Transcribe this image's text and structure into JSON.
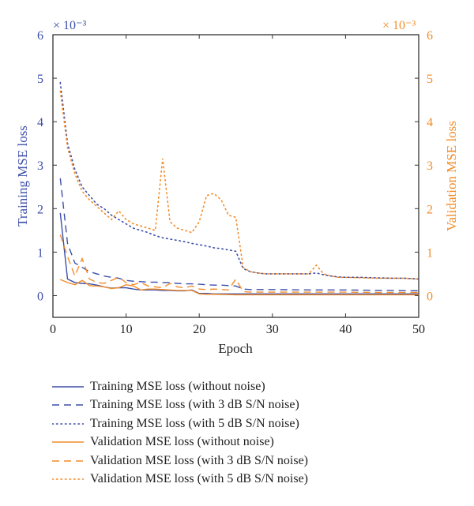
{
  "chart_data": {
    "type": "line",
    "xlabel": "Epoch",
    "ylabel_left": "Training MSE loss",
    "ylabel_right": "Validation MSE loss",
    "scale_left": "× 10⁻³",
    "scale_right": "× 10⁻³",
    "xlim": [
      0,
      50
    ],
    "ylim_left": [
      -0.5,
      6
    ],
    "ylim_right": [
      -0.5,
      6
    ],
    "x_ticks": [
      0,
      10,
      20,
      30,
      40,
      50
    ],
    "y_ticks_left": [
      0,
      1,
      2,
      3,
      4,
      5,
      6
    ],
    "y_ticks_right": [
      0,
      1,
      2,
      3,
      4,
      5,
      6
    ],
    "grid": false,
    "legend_position": "below",
    "colors": {
      "training": "#3d4fa8",
      "validation": "#f28c28",
      "axis": "#333333"
    },
    "series": [
      {
        "name": "Training MSE loss (without noise)",
        "axis": "left",
        "color": "#3d4fa8",
        "dash": "solid",
        "points": [
          [
            1,
            1.9
          ],
          [
            2,
            0.38
          ],
          [
            3,
            0.3
          ],
          [
            4,
            0.28
          ],
          [
            5,
            0.27
          ],
          [
            6,
            0.24
          ],
          [
            7,
            0.2
          ],
          [
            8,
            0.17
          ],
          [
            9,
            0.18
          ],
          [
            10,
            0.18
          ],
          [
            11,
            0.15
          ],
          [
            12,
            0.13
          ],
          [
            13,
            0.13
          ],
          [
            14,
            0.13
          ],
          [
            15,
            0.12
          ],
          [
            16,
            0.12
          ],
          [
            17,
            0.11
          ],
          [
            18,
            0.11
          ],
          [
            19,
            0.13
          ],
          [
            20,
            0.05
          ],
          [
            21,
            0.05
          ],
          [
            22,
            0.04
          ],
          [
            25,
            0.04
          ],
          [
            30,
            0.04
          ],
          [
            35,
            0.04
          ],
          [
            40,
            0.04
          ],
          [
            45,
            0.04
          ],
          [
            50,
            0.04
          ]
        ]
      },
      {
        "name": "Training MSE loss (with 3 dB S/N noise)",
        "axis": "left",
        "color": "#3d4fa8",
        "dash": "dashed",
        "points": [
          [
            1,
            2.7
          ],
          [
            2,
            1.2
          ],
          [
            3,
            0.75
          ],
          [
            4,
            0.65
          ],
          [
            5,
            0.55
          ],
          [
            6,
            0.5
          ],
          [
            7,
            0.45
          ],
          [
            8,
            0.42
          ],
          [
            9,
            0.4
          ],
          [
            10,
            0.35
          ],
          [
            11,
            0.33
          ],
          [
            12,
            0.32
          ],
          [
            13,
            0.31
          ],
          [
            14,
            0.31
          ],
          [
            15,
            0.3
          ],
          [
            16,
            0.3
          ],
          [
            17,
            0.28
          ],
          [
            18,
            0.27
          ],
          [
            19,
            0.27
          ],
          [
            20,
            0.26
          ],
          [
            21,
            0.25
          ],
          [
            22,
            0.24
          ],
          [
            23,
            0.24
          ],
          [
            24,
            0.23
          ],
          [
            25,
            0.22
          ],
          [
            26,
            0.15
          ],
          [
            27,
            0.14
          ],
          [
            30,
            0.14
          ],
          [
            35,
            0.13
          ],
          [
            40,
            0.13
          ],
          [
            45,
            0.12
          ],
          [
            50,
            0.11
          ]
        ]
      },
      {
        "name": "Training MSE loss (with 5 dB S/N noise)",
        "axis": "left",
        "color": "#3d4fa8",
        "dash": "dotted",
        "points": [
          [
            1,
            4.9
          ],
          [
            2,
            3.5
          ],
          [
            3,
            2.9
          ],
          [
            4,
            2.5
          ],
          [
            5,
            2.3
          ],
          [
            6,
            2.1
          ],
          [
            7,
            2.0
          ],
          [
            8,
            1.85
          ],
          [
            9,
            1.75
          ],
          [
            10,
            1.65
          ],
          [
            11,
            1.55
          ],
          [
            12,
            1.5
          ],
          [
            13,
            1.45
          ],
          [
            14,
            1.38
          ],
          [
            15,
            1.33
          ],
          [
            16,
            1.3
          ],
          [
            17,
            1.27
          ],
          [
            18,
            1.24
          ],
          [
            19,
            1.2
          ],
          [
            20,
            1.17
          ],
          [
            21,
            1.14
          ],
          [
            22,
            1.1
          ],
          [
            23,
            1.08
          ],
          [
            24,
            1.05
          ],
          [
            25,
            1.02
          ],
          [
            26,
            0.62
          ],
          [
            27,
            0.55
          ],
          [
            28,
            0.52
          ],
          [
            29,
            0.5
          ],
          [
            30,
            0.5
          ],
          [
            31,
            0.5
          ],
          [
            32,
            0.5
          ],
          [
            33,
            0.5
          ],
          [
            34,
            0.5
          ],
          [
            35,
            0.5
          ],
          [
            36,
            0.52
          ],
          [
            37,
            0.48
          ],
          [
            38,
            0.45
          ],
          [
            39,
            0.43
          ],
          [
            40,
            0.42
          ],
          [
            42,
            0.42
          ],
          [
            44,
            0.41
          ],
          [
            46,
            0.4
          ],
          [
            48,
            0.4
          ],
          [
            50,
            0.38
          ]
        ]
      },
      {
        "name": "Validation MSE loss (without noise)",
        "axis": "right",
        "color": "#f28c28",
        "dash": "solid",
        "points": [
          [
            1,
            0.37
          ],
          [
            2,
            0.3
          ],
          [
            3,
            0.25
          ],
          [
            4,
            0.35
          ],
          [
            5,
            0.23
          ],
          [
            6,
            0.22
          ],
          [
            7,
            0.2
          ],
          [
            8,
            0.16
          ],
          [
            9,
            0.18
          ],
          [
            10,
            0.25
          ],
          [
            11,
            0.22
          ],
          [
            12,
            0.13
          ],
          [
            13,
            0.15
          ],
          [
            14,
            0.15
          ],
          [
            15,
            0.14
          ],
          [
            16,
            0.13
          ],
          [
            17,
            0.12
          ],
          [
            18,
            0.12
          ],
          [
            19,
            0.12
          ],
          [
            20,
            0.04
          ],
          [
            21,
            0.03
          ],
          [
            22,
            0.03
          ],
          [
            25,
            0.02
          ],
          [
            30,
            0.02
          ],
          [
            35,
            0.02
          ],
          [
            40,
            0.02
          ],
          [
            45,
            0.02
          ],
          [
            50,
            0.02
          ]
        ]
      },
      {
        "name": "Validation MSE loss (with 3 dB S/N noise)",
        "axis": "right",
        "color": "#f28c28",
        "dash": "dashed",
        "points": [
          [
            1,
            1.4
          ],
          [
            2,
            0.9
          ],
          [
            3,
            0.45
          ],
          [
            4,
            0.85
          ],
          [
            5,
            0.38
          ],
          [
            6,
            0.3
          ],
          [
            7,
            0.28
          ],
          [
            8,
            0.35
          ],
          [
            9,
            0.42
          ],
          [
            10,
            0.3
          ],
          [
            11,
            0.25
          ],
          [
            12,
            0.3
          ],
          [
            13,
            0.22
          ],
          [
            14,
            0.2
          ],
          [
            15,
            0.18
          ],
          [
            16,
            0.28
          ],
          [
            17,
            0.2
          ],
          [
            18,
            0.18
          ],
          [
            19,
            0.22
          ],
          [
            20,
            0.15
          ],
          [
            21,
            0.14
          ],
          [
            22,
            0.15
          ],
          [
            23,
            0.14
          ],
          [
            24,
            0.13
          ],
          [
            25,
            0.38
          ],
          [
            26,
            0.09
          ],
          [
            27,
            0.08
          ],
          [
            30,
            0.08
          ],
          [
            35,
            0.08
          ],
          [
            40,
            0.08
          ],
          [
            45,
            0.07
          ],
          [
            50,
            0.07
          ]
        ]
      },
      {
        "name": "Validation MSE loss (with 5 dB S/N noise)",
        "axis": "right",
        "color": "#f28c28",
        "dash": "dotted",
        "points": [
          [
            1,
            4.7
          ],
          [
            2,
            3.4
          ],
          [
            3,
            2.8
          ],
          [
            4,
            2.4
          ],
          [
            5,
            2.2
          ],
          [
            6,
            2.05
          ],
          [
            7,
            1.9
          ],
          [
            8,
            1.75
          ],
          [
            9,
            1.95
          ],
          [
            10,
            1.75
          ],
          [
            11,
            1.65
          ],
          [
            12,
            1.6
          ],
          [
            13,
            1.55
          ],
          [
            14,
            1.5
          ],
          [
            15,
            3.15
          ],
          [
            16,
            1.7
          ],
          [
            17,
            1.55
          ],
          [
            18,
            1.5
          ],
          [
            19,
            1.45
          ],
          [
            20,
            1.7
          ],
          [
            21,
            2.3
          ],
          [
            22,
            2.35
          ],
          [
            23,
            2.2
          ],
          [
            24,
            1.85
          ],
          [
            25,
            1.8
          ],
          [
            26,
            0.65
          ],
          [
            27,
            0.55
          ],
          [
            28,
            0.52
          ],
          [
            29,
            0.5
          ],
          [
            30,
            0.5
          ],
          [
            31,
            0.5
          ],
          [
            32,
            0.5
          ],
          [
            33,
            0.5
          ],
          [
            34,
            0.5
          ],
          [
            35,
            0.5
          ],
          [
            36,
            0.7
          ],
          [
            37,
            0.5
          ],
          [
            38,
            0.45
          ],
          [
            39,
            0.42
          ],
          [
            40,
            0.42
          ],
          [
            42,
            0.41
          ],
          [
            44,
            0.4
          ],
          [
            46,
            0.4
          ],
          [
            48,
            0.4
          ],
          [
            50,
            0.38
          ]
        ]
      }
    ]
  }
}
